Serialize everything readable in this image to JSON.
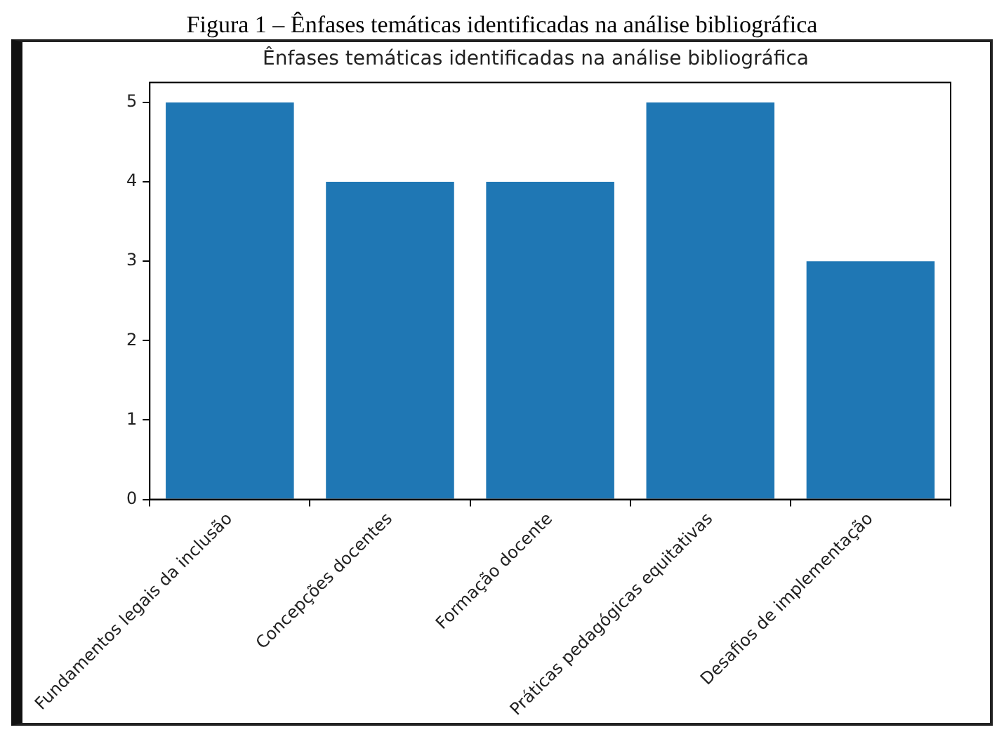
{
  "chart_data": {
    "type": "bar",
    "title": "Ênfases temáticas identificadas na análise bibliográfica",
    "annotations": [
      "Figura 1 – Ênfases temáticas identificadas na análise bibliográfica"
    ],
    "categories": [
      "Fundamentos legais da inclusão",
      "Concepções docentes",
      "Formação docente",
      "Práticas pedagógicas equitativas",
      "Desafios de implementação"
    ],
    "values": [
      5,
      4,
      4,
      5,
      3
    ],
    "color": "#1f77b4",
    "ylim": [
      0,
      5.25
    ],
    "yticks": [
      0,
      1,
      2,
      3,
      4,
      5
    ],
    "grid": false
  }
}
